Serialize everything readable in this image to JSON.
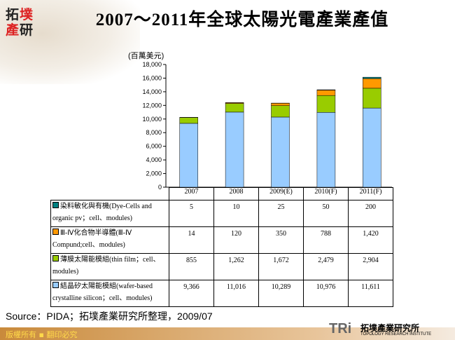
{
  "header": {
    "title": "2007～2011年全球太陽光電產業產值",
    "logo_text": "拓墣產研"
  },
  "chart_data": {
    "type": "bar",
    "stacked": true,
    "title": "2007～2011年全球太陽光電產業產值",
    "ylabel": "(百萬美元)",
    "ylim": [
      0,
      18000
    ],
    "yticks": [
      0,
      2000,
      4000,
      6000,
      8000,
      10000,
      12000,
      14000,
      16000,
      18000
    ],
    "ytick_labels": [
      "0",
      "2,000",
      "4,000",
      "6,000",
      "8,000",
      "10,000",
      "12,000",
      "14,000",
      "16,000",
      "18,000"
    ],
    "categories": [
      "2007",
      "2008",
      "2009(E)",
      "2010(F)",
      "2011(F)"
    ],
    "grid": false,
    "series": [
      {
        "name": "結晶矽太陽能模組(wafer-based crystalline silicon；cell、modules)",
        "color": "#99CCFF",
        "values": [
          9366,
          11016,
          10289,
          10976,
          11611
        ],
        "labels": [
          "9,366",
          "11,016",
          "10,289",
          "10,976",
          "11,611"
        ]
      },
      {
        "name": "薄膜太陽能模組(thin film；cell、modules)",
        "color": "#99CC00",
        "values": [
          855,
          1262,
          1672,
          2479,
          2904
        ],
        "labels": [
          "855",
          "1,262",
          "1,672",
          "2,479",
          "2,904"
        ]
      },
      {
        "name": "Ⅲ-Ⅳ化合物半導體(Ⅲ-Ⅳ Compund;cell、modules)",
        "color": "#FF9900",
        "values": [
          14,
          120,
          350,
          788,
          1420
        ],
        "labels": [
          "14",
          "120",
          "350",
          "788",
          "1,420"
        ]
      },
      {
        "name": "染料敏化與有機(Dye-Cells and organic pv；cell、modules)",
        "color": "#008080",
        "values": [
          5,
          10,
          25,
          50,
          200
        ],
        "labels": [
          "5",
          "10",
          "25",
          "50",
          "200"
        ]
      }
    ]
  },
  "source": "Source：PIDA；拓墣產業研究所整理，2009/07",
  "footer": {
    "copyright": "版權所有 ▪ 翻印必究",
    "brand": "TRi",
    "brand_cn": "拓墣產業研究所",
    "brand_en": "TOPOLOGY RESEARCH INSTITUTE"
  }
}
